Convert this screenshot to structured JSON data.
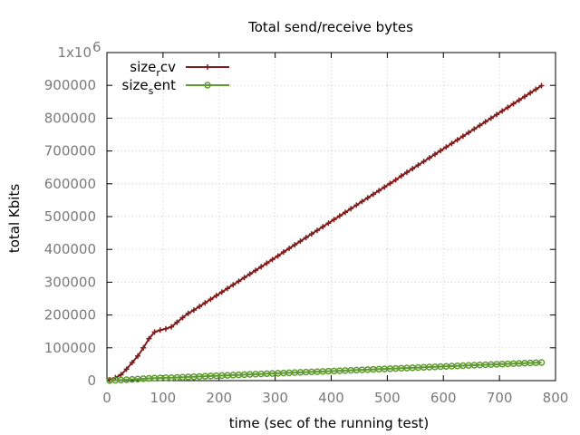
{
  "chart_data": {
    "type": "line",
    "title": "Total send/receive bytes",
    "xlabel": "time (sec of the running test)",
    "ylabel": "total Kbits",
    "xlim": [
      0,
      800
    ],
    "ylim": [
      0,
      1000000
    ],
    "grid": true,
    "legend_position": "top-left",
    "xticks": [
      0,
      100,
      200,
      300,
      400,
      500,
      600,
      700,
      800
    ],
    "xtick_labels": [
      "0",
      "100",
      "200",
      "300",
      "400",
      "500",
      "600",
      "700",
      "800"
    ],
    "yticks": [
      0,
      100000,
      200000,
      300000,
      400000,
      500000,
      600000,
      700000,
      800000,
      900000,
      1000000
    ],
    "ytick_labels": [
      "0",
      "100000",
      "200000",
      "300000",
      "400000",
      "500000",
      "600000",
      "700000",
      "800000",
      "900000",
      "1x10"
    ],
    "ytick_top_exponent": "6",
    "series": [
      {
        "name": "size_rcv",
        "legend_base": "size",
        "legend_sub": "r",
        "legend_rest": "cv",
        "color": "#7f1d1d",
        "marker": "plus",
        "x": [
          5,
          15,
          25,
          35,
          45,
          55,
          65,
          75,
          85,
          95,
          105,
          115,
          125,
          135,
          145,
          155,
          165,
          175,
          185,
          195,
          205,
          215,
          225,
          235,
          245,
          255,
          265,
          275,
          285,
          295,
          305,
          315,
          325,
          335,
          345,
          355,
          365,
          375,
          385,
          395,
          405,
          415,
          425,
          435,
          445,
          455,
          465,
          475,
          485,
          495,
          505,
          515,
          525,
          535,
          545,
          555,
          565,
          575,
          585,
          595,
          605,
          615,
          625,
          635,
          645,
          655,
          665,
          675,
          685,
          695,
          705,
          715,
          725,
          735,
          745,
          755,
          765,
          775
        ],
        "y": [
          3000,
          9000,
          18000,
          35000,
          55000,
          75000,
          100000,
          128000,
          148000,
          154000,
          158000,
          164000,
          178000,
          192000,
          205000,
          215000,
          226000,
          237000,
          248000,
          259000,
          270000,
          281000,
          292000,
          303000,
          314000,
          325000,
          336000,
          347000,
          358000,
          369000,
          380000,
          392000,
          403000,
          414000,
          425000,
          436000,
          447000,
          458000,
          469000,
          480000,
          491000,
          502000,
          513000,
          524000,
          535000,
          546000,
          557000,
          568000,
          579000,
          590000,
          601000,
          612000,
          624000,
          635000,
          646000,
          657000,
          668000,
          679000,
          690000,
          701000,
          712000,
          723000,
          734000,
          745000,
          756000,
          767000,
          778000,
          789000,
          800000,
          811000,
          822000,
          833000,
          844000,
          855000,
          866000,
          877000,
          888000,
          899000
        ]
      },
      {
        "name": "size_sent",
        "legend_base": "size",
        "legend_sub": "s",
        "legend_rest": "ent",
        "color": "#5f9a2f",
        "marker": "circle",
        "x": [
          5,
          15,
          25,
          35,
          45,
          55,
          65,
          75,
          85,
          95,
          105,
          115,
          125,
          135,
          145,
          155,
          165,
          175,
          185,
          195,
          205,
          215,
          225,
          235,
          245,
          255,
          265,
          275,
          285,
          295,
          305,
          315,
          325,
          335,
          345,
          355,
          365,
          375,
          385,
          395,
          405,
          415,
          425,
          435,
          445,
          455,
          465,
          475,
          485,
          495,
          505,
          515,
          525,
          535,
          545,
          555,
          565,
          575,
          585,
          595,
          605,
          615,
          625,
          635,
          645,
          655,
          665,
          675,
          685,
          695,
          705,
          715,
          725,
          735,
          745,
          755,
          765,
          775
        ],
        "y": [
          500,
          1000,
          1800,
          2800,
          3800,
          4800,
          5800,
          6800,
          7500,
          8000,
          8500,
          9000,
          9800,
          10500,
          11200,
          11900,
          12600,
          13300,
          14000,
          14700,
          15400,
          16100,
          16800,
          17500,
          18200,
          18900,
          19600,
          20300,
          21000,
          21700,
          22400,
          23100,
          23800,
          24500,
          25200,
          25900,
          26600,
          27300,
          28000,
          28700,
          29400,
          30100,
          30800,
          31500,
          32200,
          32900,
          33600,
          34300,
          35000,
          35700,
          36400,
          37100,
          37800,
          38500,
          39200,
          39900,
          40600,
          41300,
          42000,
          42700,
          43400,
          44100,
          44800,
          45500,
          46200,
          46900,
          47600,
          48300,
          49000,
          49700,
          50400,
          51100,
          51800,
          52500,
          53200,
          53900,
          54600,
          55300
        ]
      }
    ]
  }
}
